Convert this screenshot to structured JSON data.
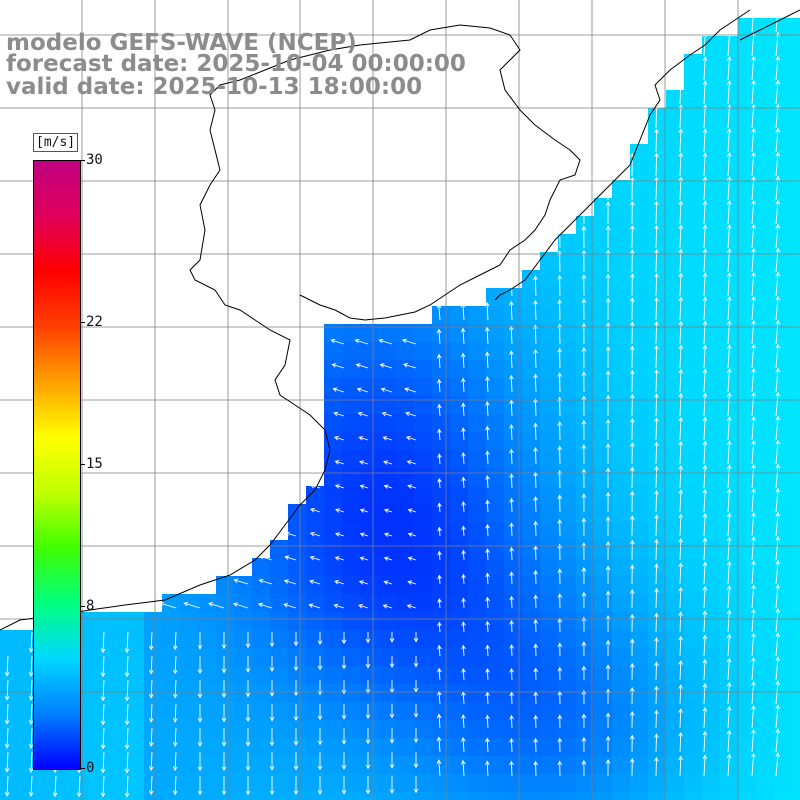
{
  "titles": {
    "model": "modelo GEFS-WAVE (NCEP)",
    "forecast": "forecast date: 2025-10-04 00:00:00",
    "valid": "valid date: 2025-10-13 18:00:00"
  },
  "colorbar": {
    "unit": "[m/s]",
    "ticks": [
      {
        "label": "30",
        "value": 30
      },
      {
        "label": "22",
        "value": 22
      },
      {
        "label": "15",
        "value": 15
      },
      {
        "label": "8",
        "value": 8
      },
      {
        "label": "0",
        "value": 0
      }
    ],
    "range": [
      0,
      30
    ],
    "colors": [
      "#0000ff",
      "#0080ff",
      "#00d8ff",
      "#00ff80",
      "#40ff00",
      "#c0ff00",
      "#ffff00",
      "#ffa000",
      "#ff4000",
      "#ff0000",
      "#e0005a",
      "#c00080"
    ]
  },
  "map": {
    "field": "wind speed and direction",
    "land_color": "#ffffff",
    "grid_color": "#7f7f7f",
    "coast_color": "#000000",
    "arrow_color": "#ffffff"
  }
}
